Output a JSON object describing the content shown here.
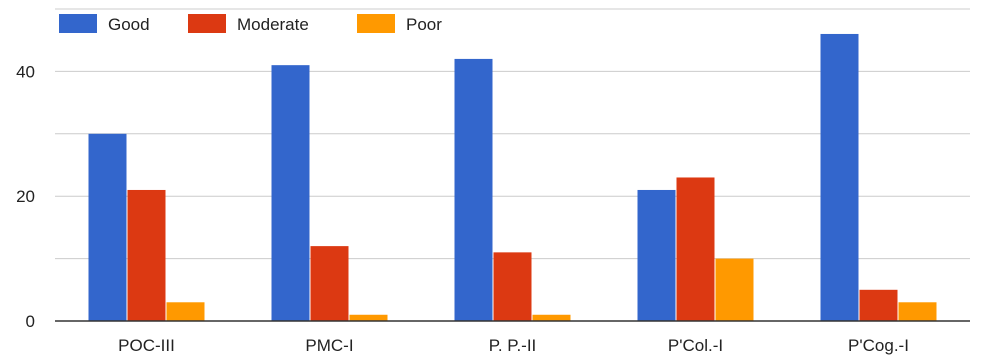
{
  "chart_data": {
    "type": "bar",
    "categories": [
      "POC-III",
      "PMC-I",
      "P. P.-II",
      "P'Col.-I",
      "P'Cog.-I"
    ],
    "series": [
      {
        "name": "Good",
        "values": [
          30,
          41,
          42,
          21,
          46
        ],
        "color": "#3366cc"
      },
      {
        "name": "Moderate",
        "values": [
          21,
          12,
          11,
          23,
          5
        ],
        "color": "#dc3912"
      },
      {
        "name": "Poor",
        "values": [
          3,
          1,
          1,
          10,
          3
        ],
        "color": "#ff9900"
      }
    ],
    "yticks": [
      0,
      20,
      40
    ],
    "ylim": [
      0,
      50
    ],
    "grid": true,
    "legend_position": "top-left"
  }
}
